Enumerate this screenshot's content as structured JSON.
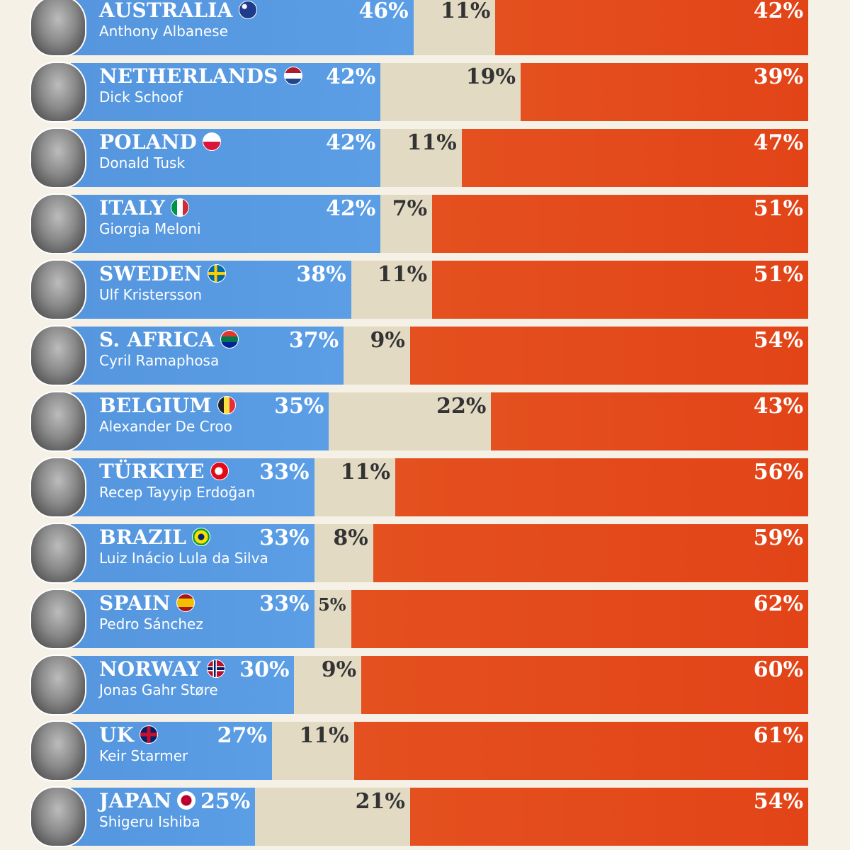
{
  "colors": {
    "approve": "#5b9ee6",
    "unsure": "#e2dac3",
    "disapprove": "#e24418",
    "background": "#f6f1e7"
  },
  "chart_data": {
    "type": "bar",
    "stacked": true,
    "orientation": "horizontal",
    "categories": [
      "AUSTRALIA",
      "NETHERLANDS",
      "POLAND",
      "ITALY",
      "SWEDEN",
      "S. AFRICA",
      "BELGIUM",
      "TÜRKIYE",
      "BRAZIL",
      "SPAIN",
      "NORWAY",
      "UK",
      "JAPAN"
    ],
    "leaders": [
      "Anthony Albanese",
      "Dick Schoof",
      "Donald Tusk",
      "Giorgia Meloni",
      "Ulf Kristersson",
      "Cyril Ramaphosa",
      "Alexander De Croo",
      "Recep Tayyip Erdoğan",
      "Luiz Inácio Lula da Silva",
      "Pedro Sánchez",
      "Jonas Gahr Støre",
      "Keir Starmer",
      "Shigeru Ishiba"
    ],
    "flags": [
      "australia-flag",
      "netherlands-flag",
      "poland-flag",
      "italy-flag",
      "sweden-flag",
      "south-africa-flag",
      "belgium-flag",
      "turkey-flag",
      "brazil-flag",
      "spain-flag",
      "norway-flag",
      "uk-flag",
      "japan-flag"
    ],
    "series": [
      {
        "values": [
          46,
          42,
          42,
          42,
          38,
          37,
          35,
          33,
          33,
          33,
          30,
          27,
          25
        ]
      },
      {
        "values": [
          11,
          19,
          11,
          7,
          11,
          9,
          22,
          11,
          8,
          5,
          9,
          11,
          21
        ]
      },
      {
        "values": [
          42,
          39,
          47,
          51,
          51,
          54,
          43,
          56,
          59,
          62,
          60,
          61,
          54
        ]
      }
    ],
    "labels": [
      [
        "46%",
        "11%",
        "42%"
      ],
      [
        "42%",
        "19%",
        "39%"
      ],
      [
        "42%",
        "11%",
        "47%"
      ],
      [
        "42%",
        "7%",
        "51%"
      ],
      [
        "38%",
        "11%",
        "51%"
      ],
      [
        "37%",
        "9%",
        "54%"
      ],
      [
        "35%",
        "22%",
        "43%"
      ],
      [
        "33%",
        "11%",
        "56%"
      ],
      [
        "33%",
        "8%",
        "59%"
      ],
      [
        "33%",
        "5%",
        "62%"
      ],
      [
        "30%",
        "9%",
        "60%"
      ],
      [
        "27%",
        "11%",
        "61%"
      ],
      [
        "25%",
        "21%",
        "54%"
      ]
    ]
  }
}
